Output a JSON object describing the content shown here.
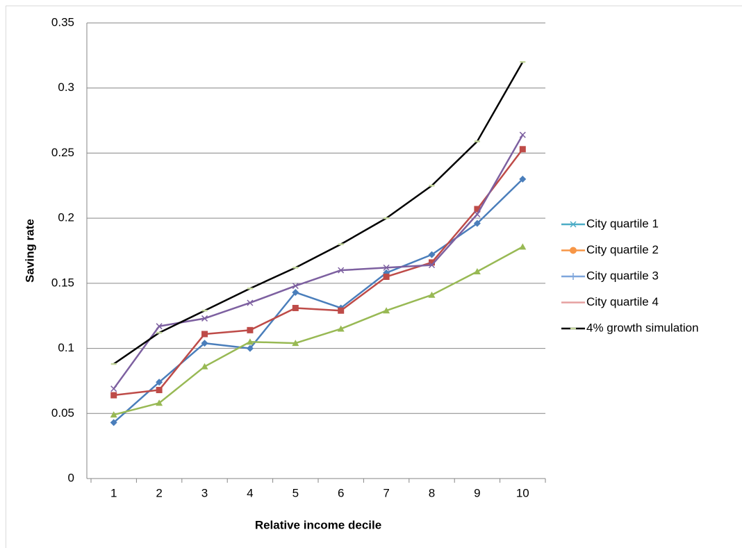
{
  "chart_data": {
    "type": "line",
    "x_label": "Relative income decile",
    "y_label": "Saving rate",
    "categories": [
      "1",
      "2",
      "3",
      "4",
      "5",
      "6",
      "7",
      "8",
      "9",
      "10"
    ],
    "ylim": [
      0,
      0.35
    ],
    "yticks": [
      0,
      0.05,
      0.1,
      0.15,
      0.2,
      0.25,
      0.3,
      0.35
    ],
    "grid": true,
    "legend": "right",
    "series": [
      {
        "name": "City quartile 1",
        "color": "#4a7ebb",
        "marker": "diamond",
        "marker_color": "#4a7ebb",
        "legend_color": "#4bacc6",
        "legend_marker": "star",
        "values": [
          0.043,
          0.074,
          0.104,
          0.1,
          0.143,
          0.131,
          0.158,
          0.172,
          0.196,
          0.23
        ]
      },
      {
        "name": "City quartile 2",
        "color": "#be4b48",
        "marker": "square",
        "marker_color": "#be4b48",
        "legend_color": "#f79646",
        "legend_marker": "circle",
        "values": [
          0.064,
          0.068,
          0.111,
          0.114,
          0.131,
          0.129,
          0.155,
          0.166,
          0.207,
          0.253
        ]
      },
      {
        "name": "City quartile 3",
        "color": "#98b954",
        "marker": "triangle",
        "marker_color": "#98b954",
        "legend_color": "#7ea6dc",
        "legend_marker": "plus",
        "values": [
          0.049,
          0.058,
          0.086,
          0.105,
          0.104,
          0.115,
          0.129,
          0.141,
          0.159,
          0.178
        ]
      },
      {
        "name": "City quartile 4",
        "color": "#7d60a0",
        "marker": "x",
        "marker_color": "#7d60a0",
        "legend_color": "#e6a0a0",
        "legend_marker": "none",
        "values": [
          0.069,
          0.117,
          0.123,
          0.135,
          0.148,
          0.16,
          0.162,
          0.164,
          0.203,
          0.264
        ]
      },
      {
        "name": "4% growth simulation",
        "color": "#000000",
        "marker": "dash",
        "marker_color": "#c3d69b",
        "legend_color": "#000000",
        "legend_marker": "dash",
        "values": [
          0.088,
          0.112,
          0.129,
          0.146,
          0.162,
          0.18,
          0.2,
          0.225,
          0.259,
          0.32
        ]
      }
    ]
  }
}
